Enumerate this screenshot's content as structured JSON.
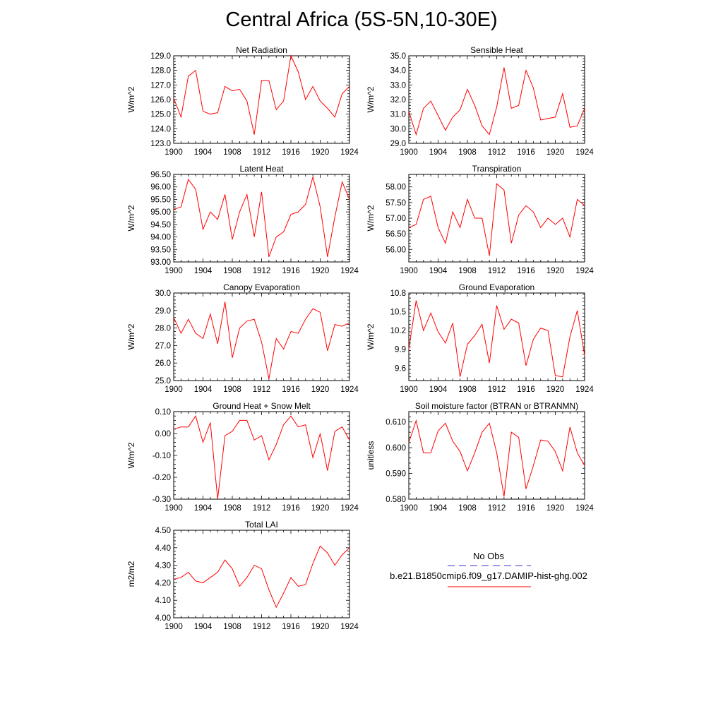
{
  "title": "Central Africa (5S-5N,10-30E)",
  "legend": {
    "obs_label": "No Obs",
    "obs_color": "#3333cc",
    "case_label": "b.e21.B1850cmip6.f09_g17.DAMIP-hist-ghg.002",
    "case_color": "#ff0000"
  },
  "chart_data": [
    {
      "type": "line",
      "title": "Net Radiation",
      "ylabel": "W/m^2",
      "xlim": [
        1900,
        1924
      ],
      "ylim": [
        123.0,
        129.0
      ],
      "xticks": [
        "1900",
        "1904",
        "1908",
        "1912",
        "1916",
        "1920",
        "1924"
      ],
      "yticks": [
        "123.0",
        "124.0",
        "125.0",
        "126.0",
        "127.0",
        "128.0",
        "129.0"
      ],
      "x": [
        1900,
        1901,
        1902,
        1903,
        1904,
        1905,
        1906,
        1907,
        1908,
        1909,
        1910,
        1911,
        1912,
        1913,
        1914,
        1915,
        1916,
        1917,
        1918,
        1919,
        1920,
        1921,
        1922,
        1923,
        1924
      ],
      "series": [
        {
          "color": "#ff0000",
          "values": [
            126.1,
            124.8,
            127.6,
            128.0,
            125.2,
            125.0,
            125.1,
            126.9,
            126.6,
            126.7,
            125.9,
            123.6,
            127.3,
            127.3,
            125.3,
            125.9,
            129.0,
            127.9,
            126.0,
            126.9,
            125.9,
            125.4,
            124.8,
            126.4,
            126.9
          ]
        }
      ]
    },
    {
      "type": "line",
      "title": "Sensible Heat",
      "ylabel": "W/m^2",
      "xlim": [
        1900,
        1924
      ],
      "ylim": [
        29.0,
        35.0
      ],
      "xticks": [
        "1900",
        "1904",
        "1908",
        "1912",
        "1916",
        "1920",
        "1924"
      ],
      "yticks": [
        "29.0",
        "30.0",
        "31.0",
        "32.0",
        "33.0",
        "34.0",
        "35.0"
      ],
      "x": [
        1900,
        1901,
        1902,
        1903,
        1904,
        1905,
        1906,
        1907,
        1908,
        1909,
        1910,
        1911,
        1912,
        1913,
        1914,
        1915,
        1916,
        1917,
        1918,
        1919,
        1920,
        1921,
        1922,
        1923,
        1924
      ],
      "series": [
        {
          "color": "#ff0000",
          "values": [
            31.2,
            29.6,
            31.4,
            31.9,
            30.9,
            29.9,
            30.8,
            31.3,
            32.7,
            31.6,
            30.2,
            29.6,
            31.5,
            34.2,
            31.4,
            31.6,
            34.0,
            32.8,
            30.6,
            30.7,
            30.8,
            32.4,
            30.1,
            30.2,
            31.4
          ]
        }
      ]
    },
    {
      "type": "line",
      "title": "Latent Heat",
      "ylabel": "W/m^2",
      "xlim": [
        1900,
        1924
      ],
      "ylim": [
        93.0,
        96.5
      ],
      "xticks": [
        "1900",
        "1904",
        "1908",
        "1912",
        "1916",
        "1920",
        "1924"
      ],
      "yticks": [
        "93.00",
        "93.50",
        "94.00",
        "94.50",
        "95.00",
        "95.50",
        "96.00",
        "96.50"
      ],
      "x": [
        1900,
        1901,
        1902,
        1903,
        1904,
        1905,
        1906,
        1907,
        1908,
        1909,
        1910,
        1911,
        1912,
        1913,
        1914,
        1915,
        1916,
        1917,
        1918,
        1919,
        1920,
        1921,
        1922,
        1923,
        1924
      ],
      "series": [
        {
          "color": "#ff0000",
          "values": [
            95.1,
            95.2,
            96.3,
            95.9,
            94.3,
            95.0,
            94.7,
            95.7,
            93.9,
            95.0,
            95.7,
            94.0,
            95.8,
            93.2,
            94.0,
            94.2,
            94.9,
            95.0,
            95.3,
            96.4,
            95.2,
            93.2,
            94.8,
            96.2,
            95.5
          ]
        }
      ]
    },
    {
      "type": "line",
      "title": "Transpiration",
      "ylabel": "W/m^2",
      "xlim": [
        1900,
        1924
      ],
      "ylim": [
        55.6,
        58.4
      ],
      "xticks": [
        "1900",
        "1904",
        "1908",
        "1912",
        "1916",
        "1920",
        "1924"
      ],
      "yticks": [
        "56.00",
        "56.50",
        "57.00",
        "57.50",
        "58.00"
      ],
      "x": [
        1900,
        1901,
        1902,
        1903,
        1904,
        1905,
        1906,
        1907,
        1908,
        1909,
        1910,
        1911,
        1912,
        1913,
        1914,
        1915,
        1916,
        1917,
        1918,
        1919,
        1920,
        1921,
        1922,
        1923,
        1924
      ],
      "series": [
        {
          "color": "#ff0000",
          "values": [
            56.7,
            56.8,
            57.6,
            57.7,
            56.7,
            56.2,
            57.2,
            56.7,
            57.6,
            57.0,
            57.0,
            55.8,
            58.1,
            57.9,
            56.2,
            57.1,
            57.4,
            57.2,
            56.7,
            57.0,
            56.8,
            57.0,
            56.4,
            57.6,
            57.4
          ]
        }
      ]
    },
    {
      "type": "line",
      "title": "Canopy Evaporation",
      "ylabel": "W/m^2",
      "xlim": [
        1900,
        1924
      ],
      "ylim": [
        25.0,
        30.0
      ],
      "xticks": [
        "1900",
        "1904",
        "1908",
        "1912",
        "1916",
        "1920",
        "1924"
      ],
      "yticks": [
        "25.0",
        "26.0",
        "27.0",
        "28.0",
        "29.0",
        "30.0"
      ],
      "x": [
        1900,
        1901,
        1902,
        1903,
        1904,
        1905,
        1906,
        1907,
        1908,
        1909,
        1910,
        1911,
        1912,
        1913,
        1914,
        1915,
        1916,
        1917,
        1918,
        1919,
        1920,
        1921,
        1922,
        1923,
        1924
      ],
      "series": [
        {
          "color": "#ff0000",
          "values": [
            28.6,
            27.7,
            28.5,
            27.7,
            27.4,
            28.8,
            27.1,
            29.5,
            26.3,
            28.0,
            28.4,
            28.5,
            27.2,
            25.1,
            27.4,
            26.8,
            27.8,
            27.7,
            28.5,
            29.1,
            28.9,
            26.7,
            28.2,
            28.1,
            28.3
          ]
        }
      ]
    },
    {
      "type": "line",
      "title": "Ground Evaporation",
      "ylabel": "W/m^2",
      "xlim": [
        1900,
        1924
      ],
      "ylim": [
        9.4,
        10.8
      ],
      "xticks": [
        "1900",
        "1904",
        "1908",
        "1912",
        "1916",
        "1920",
        "1924"
      ],
      "yticks": [
        "9.6",
        "9.9",
        "10.2",
        "10.5",
        "10.8"
      ],
      "x": [
        1900,
        1901,
        1902,
        1903,
        1904,
        1905,
        1906,
        1907,
        1908,
        1909,
        1910,
        1911,
        1912,
        1913,
        1914,
        1915,
        1916,
        1917,
        1918,
        1919,
        1920,
        1921,
        1922,
        1923,
        1924
      ],
      "series": [
        {
          "color": "#ff0000",
          "values": [
            9.9,
            10.68,
            10.2,
            10.48,
            10.18,
            10.0,
            10.32,
            9.46,
            9.98,
            10.12,
            10.3,
            9.68,
            10.6,
            10.22,
            10.38,
            10.32,
            9.64,
            10.06,
            10.24,
            10.2,
            9.48,
            9.46,
            10.1,
            10.52,
            9.8
          ]
        }
      ]
    },
    {
      "type": "line",
      "title": "Ground Heat + Snow Melt",
      "ylabel": "W/m^2",
      "xlim": [
        1900,
        1924
      ],
      "ylim": [
        -0.3,
        0.1
      ],
      "xticks": [
        "1900",
        "1904",
        "1908",
        "1912",
        "1916",
        "1920",
        "1924"
      ],
      "yticks": [
        "-0.30",
        "-0.20",
        "-0.10",
        "0.00",
        "0.10"
      ],
      "x": [
        1900,
        1901,
        1902,
        1903,
        1904,
        1905,
        1906,
        1907,
        1908,
        1909,
        1910,
        1911,
        1912,
        1913,
        1914,
        1915,
        1916,
        1917,
        1918,
        1919,
        1920,
        1921,
        1922,
        1923,
        1924
      ],
      "series": [
        {
          "color": "#ff0000",
          "values": [
            0.02,
            0.03,
            0.03,
            0.08,
            -0.04,
            0.05,
            -0.3,
            -0.01,
            0.01,
            0.06,
            0.06,
            -0.03,
            -0.01,
            -0.12,
            -0.05,
            0.04,
            0.08,
            0.03,
            0.04,
            -0.11,
            0.0,
            -0.17,
            0.01,
            0.03,
            -0.03
          ]
        }
      ]
    },
    {
      "type": "line",
      "title": "Soil moisture factor (BTRAN or BTRANMN)",
      "ylabel": "unitless",
      "xlim": [
        1900,
        1924
      ],
      "ylim": [
        0.58,
        0.614
      ],
      "xticks": [
        "1900",
        "1904",
        "1908",
        "1912",
        "1916",
        "1920",
        "1924"
      ],
      "yticks": [
        "0.580",
        "0.590",
        "0.600",
        "0.610"
      ],
      "x": [
        1900,
        1901,
        1902,
        1903,
        1904,
        1905,
        1906,
        1907,
        1908,
        1909,
        1910,
        1911,
        1912,
        1913,
        1914,
        1915,
        1916,
        1917,
        1918,
        1919,
        1920,
        1921,
        1922,
        1923,
        1924
      ],
      "series": [
        {
          "color": "#ff0000",
          "values": [
            0.602,
            0.6105,
            0.598,
            0.598,
            0.6065,
            0.6095,
            0.6025,
            0.5985,
            0.591,
            0.598,
            0.606,
            0.6095,
            0.598,
            0.581,
            0.606,
            0.604,
            0.584,
            0.593,
            0.603,
            0.6025,
            0.5985,
            0.591,
            0.608,
            0.598,
            0.593
          ]
        }
      ]
    },
    {
      "type": "line",
      "title": "Total LAI",
      "ylabel": "m2/m2",
      "xlim": [
        1900,
        1924
      ],
      "ylim": [
        4.0,
        4.5
      ],
      "xticks": [
        "1900",
        "1904",
        "1908",
        "1912",
        "1916",
        "1920",
        "1924"
      ],
      "yticks": [
        "4.00",
        "4.10",
        "4.20",
        "4.30",
        "4.40",
        "4.50"
      ],
      "x": [
        1900,
        1901,
        1902,
        1903,
        1904,
        1905,
        1906,
        1907,
        1908,
        1909,
        1910,
        1911,
        1912,
        1913,
        1914,
        1915,
        1916,
        1917,
        1918,
        1919,
        1920,
        1921,
        1922,
        1923,
        1924
      ],
      "series": [
        {
          "color": "#ff0000",
          "values": [
            4.22,
            4.23,
            4.26,
            4.21,
            4.2,
            4.23,
            4.26,
            4.33,
            4.28,
            4.18,
            4.23,
            4.3,
            4.28,
            4.16,
            4.06,
            4.14,
            4.23,
            4.18,
            4.19,
            4.31,
            4.41,
            4.37,
            4.3,
            4.36,
            4.4
          ]
        }
      ]
    }
  ]
}
